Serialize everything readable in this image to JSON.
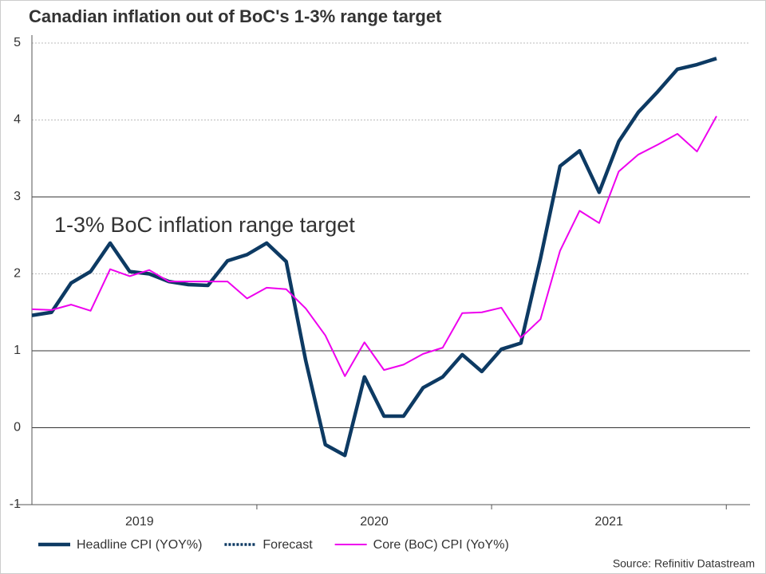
{
  "chart_data": {
    "type": "line",
    "title": "Canadian inflation out of BoC's 1-3% range target",
    "annotation": "1-3% BoC inflation range target",
    "source": "Source: Refinitiv Datastream",
    "x_labels": [
      "2019",
      "2020",
      "2021"
    ],
    "points_per_label": 12,
    "ylim": [
      -1,
      5
    ],
    "yticks": [
      -1,
      0,
      1,
      2,
      3,
      4,
      5
    ],
    "emphasized_yticks": [
      0,
      1,
      3
    ],
    "grid": true,
    "legend": "bottom",
    "series": [
      {
        "name": "Headline CPI (YOY%)",
        "color": "#0d3a63",
        "style": "solid",
        "values": [
          1.46,
          1.5,
          1.88,
          2.03,
          2.4,
          2.03,
          2.0,
          1.9,
          1.86,
          1.85,
          2.17,
          2.25,
          2.4,
          2.16,
          0.87,
          -0.22,
          -0.36,
          0.66,
          0.15,
          0.15,
          0.52,
          0.66,
          0.95,
          0.73,
          1.02,
          1.1,
          2.2,
          3.4,
          3.6,
          3.06,
          3.72,
          4.1,
          4.37,
          4.66,
          4.72,
          4.8
        ]
      },
      {
        "name": "Forecast",
        "color": "#0d3a63",
        "style": "dotted",
        "values": [
          null,
          null,
          null,
          null,
          null,
          null,
          null,
          null,
          null,
          null,
          null,
          null,
          null,
          null,
          null,
          null,
          null,
          null,
          null,
          null,
          null,
          null,
          null,
          null,
          null,
          null,
          null,
          null,
          null,
          null,
          null,
          null,
          null,
          null,
          null,
          null
        ]
      },
      {
        "name": "Core (BoC) CPI (YoY%)",
        "color": "#ee00ee",
        "style": "thin",
        "values": [
          1.54,
          1.53,
          1.6,
          1.52,
          2.06,
          1.97,
          2.05,
          1.9,
          1.9,
          1.9,
          1.9,
          1.68,
          1.82,
          1.8,
          1.55,
          1.2,
          0.67,
          1.11,
          0.75,
          0.82,
          0.96,
          1.04,
          1.49,
          1.5,
          1.56,
          1.17,
          1.41,
          2.3,
          2.82,
          2.66,
          3.33,
          3.55,
          3.68,
          3.82,
          3.59,
          4.05
        ]
      }
    ]
  }
}
